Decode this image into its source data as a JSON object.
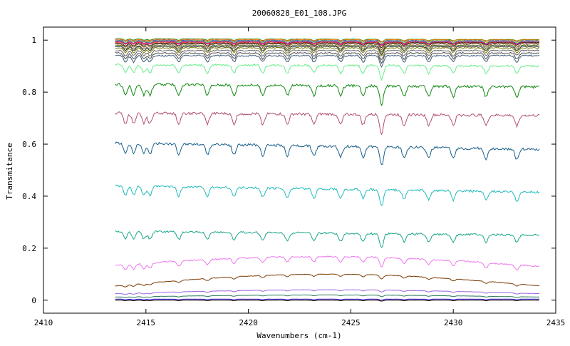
{
  "chart_data": {
    "type": "line",
    "title": "20060828_E01_108.JPG",
    "xlabel": "Wavenumbers (cm-1)",
    "ylabel": "Transmitance",
    "xlim": [
      2410,
      2435
    ],
    "ylim": [
      -0.05,
      1.05
    ],
    "x_ticks": [
      2410,
      2415,
      2420,
      2425,
      2430,
      2435
    ],
    "x_tick_labels": [
      "2410",
      "2415",
      "2420",
      "2425",
      "2430",
      "2435"
    ],
    "y_ticks": [
      0,
      0.2,
      0.4,
      0.6,
      0.8,
      1
    ],
    "y_tick_labels": [
      "0",
      "0.2",
      "0.4",
      "0.6",
      "0.8",
      "1"
    ],
    "grid": false,
    "legend": "none",
    "x_range_of_data": [
      2413.5,
      2434.2
    ],
    "absorption_lines": [
      2414.0,
      2414.4,
      2414.9,
      2415.2,
      2416.6,
      2418.0,
      2419.3,
      2420.7,
      2421.9,
      2423.2,
      2424.5,
      2425.6,
      2426.5,
      2427.6,
      2428.8,
      2430.0,
      2431.6,
      2433.1
    ],
    "series": [
      {
        "color": "#0a8a0a",
        "start": 1.005,
        "end": 1.002,
        "amp": 0.005
      },
      {
        "color": "#ff7f0e",
        "start": 1.003,
        "end": 1.001,
        "amp": 0.005
      },
      {
        "color": "#1f1fff",
        "start": 1.0,
        "end": 0.998,
        "amp": 0.006
      },
      {
        "color": "#e6e600",
        "start": 0.998,
        "end": 0.997,
        "amp": 0.006
      },
      {
        "color": "#00b3b3",
        "start": 0.996,
        "end": 0.995,
        "amp": 0.007
      },
      {
        "color": "#c000c0",
        "start": 0.994,
        "end": 0.993,
        "amp": 0.007
      },
      {
        "color": "#ff3030",
        "start": 0.992,
        "end": 0.991,
        "amp": 0.008
      },
      {
        "color": "#222222",
        "start": 0.988,
        "end": 0.99,
        "amp": 0.01
      },
      {
        "color": "#8b4513",
        "start": 0.985,
        "end": 0.985,
        "amp": 0.012
      },
      {
        "color": "#556b2f",
        "start": 0.98,
        "end": 0.98,
        "amp": 0.014
      },
      {
        "color": "#333333",
        "start": 0.975,
        "end": 0.975,
        "amp": 0.016
      },
      {
        "color": "#7a7a00",
        "start": 0.97,
        "end": 0.97,
        "amp": 0.018
      },
      {
        "color": "#5f5f5f",
        "start": 0.96,
        "end": 0.96,
        "amp": 0.02
      },
      {
        "color": "#4a4a4a",
        "start": 0.95,
        "end": 0.95,
        "amp": 0.022
      },
      {
        "color": "#3c5a78",
        "start": 0.94,
        "end": 0.94,
        "amp": 0.024
      },
      {
        "color": "#66ee88",
        "start": 0.905,
        "end": 0.9,
        "amp": 0.03
      },
      {
        "color": "#118811",
        "start": 0.83,
        "end": 0.82,
        "amp": 0.04
      },
      {
        "color": "#b0506b",
        "start": 0.72,
        "end": 0.71,
        "amp": 0.04
      },
      {
        "color": "#1a5f8a",
        "start": 0.605,
        "end": 0.58,
        "amp": 0.04
      },
      {
        "color": "#22bbbb",
        "start": 0.44,
        "end": 0.415,
        "amp": 0.035
      },
      {
        "color": "#1aa58a",
        "start": 0.265,
        "end": 0.25,
        "amp": 0.03
      },
      {
        "color": "#ee77ee",
        "start": 0.135,
        "end": 0.13,
        "amp": 0.02,
        "bulge": 0.035
      },
      {
        "color": "#7a3a00",
        "start": 0.055,
        "end": 0.055,
        "amp": 0.008,
        "bulge": 0.045
      },
      {
        "color": "#9966dd",
        "start": 0.025,
        "end": 0.025,
        "amp": 0.004,
        "bulge": 0.015
      },
      {
        "color": "#2a7a5a",
        "start": 0.012,
        "end": 0.012,
        "amp": 0.003,
        "bulge": 0.008
      },
      {
        "color": "#1f1fff",
        "start": 0.004,
        "end": 0.004,
        "amp": 0.002
      },
      {
        "color": "#ff7f0e",
        "start": 0.001,
        "end": 0.001,
        "amp": 0.002
      },
      {
        "color": "#111111",
        "start": 0.0,
        "end": 0.0,
        "amp": 0.002
      }
    ]
  }
}
